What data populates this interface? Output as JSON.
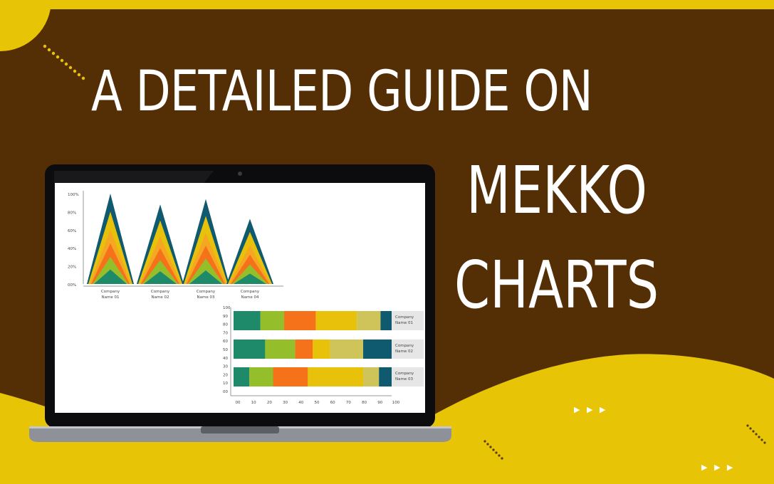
{
  "title": {
    "line1": "A DETAILED GUIDE ON",
    "line2": "MEKKO",
    "line3": "CHARTS"
  },
  "decor": {
    "arrows": "▶ ▶ ▶",
    "colors": {
      "background": "#542f06",
      "accent_yellow": "#e8c406",
      "laptop_frame": "#0c0c0e",
      "laptop_base": "#8e9198"
    }
  },
  "chart_data": [
    {
      "type": "area",
      "title": "",
      "y_ticks": [
        "100%",
        "80%",
        "60%",
        "40%",
        "20%",
        "00%"
      ],
      "categories": [
        "Company Name 01",
        "Company Name 02",
        "Company Name 03",
        "Company Name 04"
      ],
      "peaks": [
        100,
        88,
        94,
        72
      ],
      "layer_colors": [
        "#0f5a6e",
        "#e8c20a",
        "#f5a623",
        "#f6721a",
        "#95be2b",
        "#1e8a6a"
      ]
    },
    {
      "type": "bar",
      "orientation": "horizontal",
      "title": "",
      "y_ticks": [
        "100",
        "90",
        "80",
        "70",
        "60",
        "50",
        "40",
        "30",
        "20",
        "10",
        "00"
      ],
      "x_ticks": [
        "00",
        "10",
        "20",
        "30",
        "40",
        "50",
        "60",
        "70",
        "80",
        "90",
        "100"
      ],
      "categories": [
        "Company Name 01",
        "Company Name 02",
        "Company Name 03"
      ],
      "segments": [
        [
          17,
          15,
          20,
          26,
          15,
          7
        ],
        [
          20,
          19,
          11,
          11,
          21,
          18
        ],
        [
          10,
          15,
          22,
          35,
          10,
          8
        ]
      ],
      "segment_colors": [
        [
          "#1e8a6a",
          "#95be2b",
          "#f6721a",
          "#e8c20a",
          "#cfc45a",
          "#0f5a6e"
        ],
        [
          "#1e8a6a",
          "#95be2b",
          "#f6721a",
          "#e8c20a",
          "#cfc45a",
          "#0f5a6e"
        ],
        [
          "#1e8a6a",
          "#95be2b",
          "#f6721a",
          "#e8c20a",
          "#cfc45a",
          "#0f5a6e"
        ]
      ]
    }
  ]
}
